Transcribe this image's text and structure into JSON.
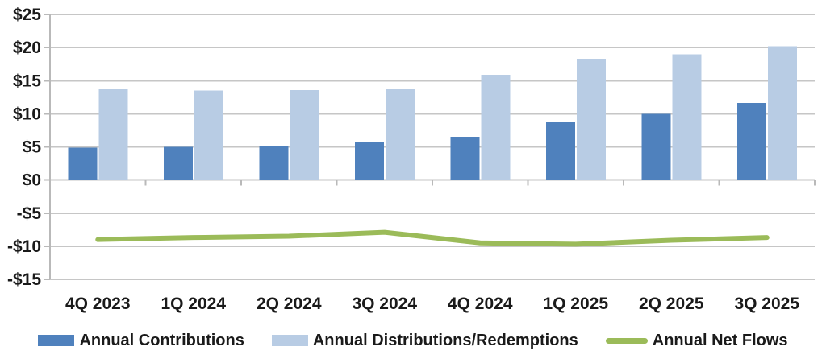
{
  "chart_data": {
    "type": "combo",
    "categories": [
      "4Q 2023",
      "1Q 2024",
      "2Q 2024",
      "3Q 2024",
      "4Q 2024",
      "1Q 2025",
      "2Q 2025",
      "3Q 2025"
    ],
    "series": [
      {
        "name": "Annual Contributions",
        "type": "bar",
        "color": "#4F81BD",
        "values": [
          4.9,
          5.0,
          5.1,
          5.8,
          6.5,
          8.7,
          10.0,
          11.6
        ]
      },
      {
        "name": "Annual Distributions/Redemptions",
        "type": "bar",
        "color": "#B8CCE4",
        "values": [
          13.8,
          13.5,
          13.6,
          13.8,
          15.9,
          18.3,
          19.0,
          20.2
        ]
      },
      {
        "name": "Annual Net Flows",
        "type": "line",
        "color": "#9BBB59",
        "values": [
          -9.0,
          -8.7,
          -8.5,
          -7.9,
          -9.5,
          -9.7,
          -9.1,
          -8.7
        ]
      }
    ],
    "y_tick_labels": [
      "$25",
      "$20",
      "$15",
      "$10",
      "$5",
      "$0",
      "-$5",
      "-$10",
      "-$15"
    ],
    "y_tick_values": [
      25,
      20,
      15,
      10,
      5,
      0,
      -5,
      -10,
      -15
    ],
    "ylim": [
      -15,
      25
    ],
    "title": "",
    "xlabel": "",
    "ylabel": "",
    "grid": "horizontal",
    "legend_position": "bottom"
  }
}
